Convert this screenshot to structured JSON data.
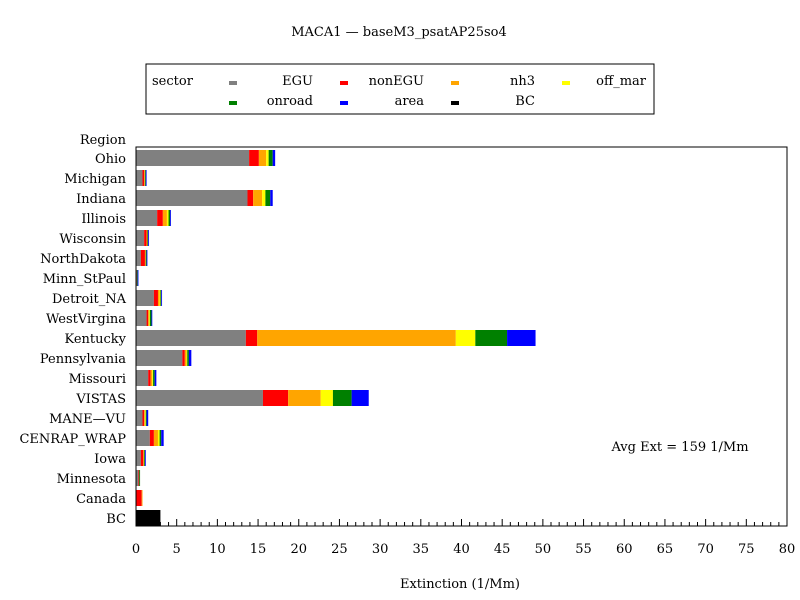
{
  "chart_data": {
    "type": "bar",
    "orientation": "horizontal",
    "stacked": true,
    "title": "MACA1 — baseM3_psatAP25so4",
    "xlabel": "Extinction (1/Mm)",
    "ylabel": "Region",
    "xlim": [
      0,
      80
    ],
    "x_major_ticks": [
      0,
      5,
      10,
      15,
      20,
      25,
      30,
      35,
      40,
      45,
      50,
      55,
      60,
      65,
      70,
      75,
      80
    ],
    "x_minor_step": 1,
    "grid": false,
    "legend": {
      "title": "sector",
      "placement": "top"
    },
    "annotation": "Avg Ext =  159 1/Mm",
    "categories": [
      "Ohio",
      "Michigan",
      "Indiana",
      "Illinois",
      "Wisconsin",
      "NorthDakota",
      "Minn_StPaul",
      "Detroit_NA",
      "WestVirgina",
      "Kentucky",
      "Pennsylvania",
      "Missouri",
      "VISTAS",
      "MANE—VU",
      "CENRAP_WRAP",
      "Iowa",
      "Minnesota",
      "Canada",
      "BC"
    ],
    "series": [
      {
        "name": "EGU",
        "color": "#808080",
        "values": [
          13.9,
          0.8,
          13.7,
          2.6,
          1.0,
          0.6,
          0.0,
          2.2,
          1.3,
          13.5,
          5.7,
          1.5,
          15.6,
          0.8,
          1.7,
          0.6,
          0.3,
          0.0,
          0.0
        ]
      },
      {
        "name": "nonEGU",
        "color": "#ff0000",
        "values": [
          1.2,
          0.2,
          0.7,
          0.7,
          0.3,
          0.5,
          0.1,
          0.5,
          0.2,
          1.4,
          0.3,
          0.3,
          3.1,
          0.2,
          0.5,
          0.3,
          0.1,
          0.7,
          0.0
        ]
      },
      {
        "name": "nh3",
        "color": "#ffa500",
        "values": [
          0.9,
          0.1,
          1.1,
          0.5,
          0.1,
          0.1,
          0.0,
          0.2,
          0.1,
          24.4,
          0.2,
          0.2,
          4.0,
          0.1,
          0.5,
          0.1,
          0.0,
          0.1,
          0.0
        ]
      },
      {
        "name": "off_mar",
        "color": "#ffff00",
        "values": [
          0.3,
          0.0,
          0.4,
          0.2,
          0.0,
          0.0,
          0.0,
          0.1,
          0.1,
          2.4,
          0.1,
          0.1,
          1.5,
          0.1,
          0.2,
          0.0,
          0.0,
          0.0,
          0.0
        ]
      },
      {
        "name": "onroad",
        "color": "#008000",
        "values": [
          0.5,
          0.1,
          0.6,
          0.2,
          0.1,
          0.1,
          0.1,
          0.1,
          0.2,
          3.9,
          0.2,
          0.2,
          2.3,
          0.1,
          0.2,
          0.1,
          0.1,
          0.0,
          0.0
        ]
      },
      {
        "name": "area",
        "color": "#0000ff",
        "values": [
          0.3,
          0.1,
          0.3,
          0.1,
          0.1,
          0.1,
          0.1,
          0.1,
          0.1,
          3.5,
          0.3,
          0.2,
          2.1,
          0.2,
          0.3,
          0.1,
          0.0,
          0.0,
          0.0
        ]
      },
      {
        "name": "BC",
        "color": "#000000",
        "values": [
          0.0,
          0.0,
          0.0,
          0.0,
          0.0,
          0.0,
          0.0,
          0.0,
          0.0,
          0.0,
          0.0,
          0.0,
          0.0,
          0.0,
          0.0,
          0.0,
          0.0,
          0.0,
          3.0
        ]
      }
    ]
  }
}
